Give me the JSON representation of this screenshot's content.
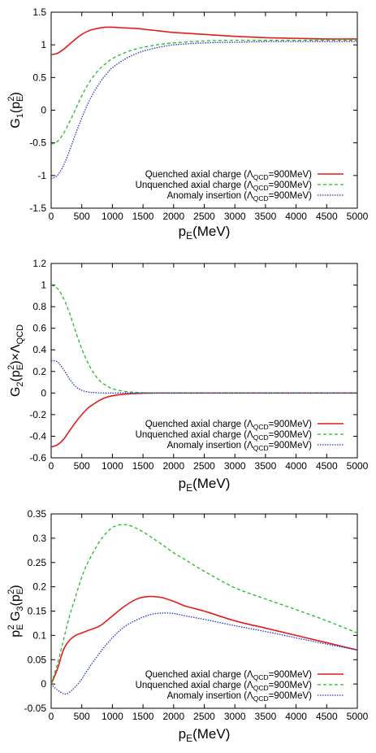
{
  "chart_data": [
    {
      "type": "line",
      "xlabel": "p",
      "xlabel_sub": "E",
      "xlabel_rest": "(MeV)",
      "ylabel_parts": [
        "G",
        "1",
        "(p",
        "E",
        "2",
        ")"
      ],
      "xlim": [
        0,
        5000
      ],
      "ylim": [
        -1.5,
        1.5
      ],
      "xticks": [
        "0",
        "500",
        "1000",
        "1500",
        "2000",
        "2500",
        "3000",
        "3500",
        "4000",
        "4500",
        "5000"
      ],
      "yticks": [
        "-1.5",
        "-1",
        "-0.5",
        "0",
        "0.5",
        "1",
        "1.5"
      ],
      "ytick_values": [
        -1.5,
        -1,
        -0.5,
        0,
        0.5,
        1,
        1.5
      ],
      "legend_position": "bottom-right",
      "series": [
        {
          "name": "Quenched axial charge (Λ",
          "name_sub": "QCD",
          "name_rest": "=900MeV)",
          "color": "#e41a1c",
          "dash": "solid",
          "x": [
            0,
            100,
            200,
            300,
            400,
            500,
            600,
            700,
            800,
            900,
            1000,
            1200,
            1400,
            1600,
            1800,
            2000,
            2500,
            3000,
            3500,
            4000,
            4500,
            5000
          ],
          "y": [
            0.85,
            0.87,
            0.93,
            1.01,
            1.09,
            1.16,
            1.21,
            1.24,
            1.26,
            1.27,
            1.27,
            1.26,
            1.25,
            1.23,
            1.21,
            1.19,
            1.16,
            1.13,
            1.11,
            1.1,
            1.09,
            1.09
          ]
        },
        {
          "name": "Unquenched axial charge (Λ",
          "name_sub": "QCD",
          "name_rest": "=900MeV)",
          "color": "#22bb22",
          "dash": "4,3",
          "x": [
            0,
            100,
            200,
            300,
            400,
            500,
            600,
            700,
            800,
            900,
            1000,
            1200,
            1400,
            1600,
            1800,
            2000,
            2500,
            3000,
            3500,
            4000,
            4500,
            5000
          ],
          "y": [
            -0.52,
            -0.48,
            -0.36,
            -0.18,
            0.02,
            0.22,
            0.39,
            0.53,
            0.64,
            0.72,
            0.79,
            0.88,
            0.94,
            0.98,
            1.01,
            1.03,
            1.06,
            1.07,
            1.07,
            1.07,
            1.07,
            1.07
          ]
        },
        {
          "name": "Anomaly insertion (Λ",
          "name_sub": "QCD",
          "name_rest": "=900MeV)",
          "color": "#2233cc",
          "dash": "1.5,1.5",
          "x": [
            0,
            100,
            200,
            300,
            400,
            500,
            600,
            700,
            800,
            900,
            1000,
            1200,
            1400,
            1600,
            1800,
            2000,
            2500,
            3000,
            3500,
            4000,
            4500,
            5000
          ],
          "y": [
            -1.05,
            -1.0,
            -0.85,
            -0.62,
            -0.36,
            -0.12,
            0.1,
            0.28,
            0.43,
            0.55,
            0.65,
            0.78,
            0.87,
            0.93,
            0.97,
            1.0,
            1.03,
            1.04,
            1.05,
            1.05,
            1.05,
            1.05
          ]
        }
      ]
    },
    {
      "type": "line",
      "xlabel": "p",
      "xlabel_sub": "E",
      "xlabel_rest": "(MeV)",
      "ylabel_parts": [
        "G",
        "2",
        "(p",
        "E",
        "2",
        ")×Λ",
        "QCD",
        ""
      ],
      "xlim": [
        0,
        5000
      ],
      "ylim": [
        -0.6,
        1.2
      ],
      "xticks": [
        "0",
        "500",
        "1000",
        "1500",
        "2000",
        "2500",
        "3000",
        "3500",
        "4000",
        "4500",
        "5000"
      ],
      "yticks": [
        "-0.6",
        "-0.4",
        "-0.2",
        "0",
        "0.2",
        "0.4",
        "0.6",
        "0.8",
        "1",
        "1.2"
      ],
      "ytick_values": [
        -0.6,
        -0.4,
        -0.2,
        0,
        0.2,
        0.4,
        0.6,
        0.8,
        1,
        1.2
      ],
      "legend_position": "bottom-right",
      "series": [
        {
          "name": "Quenched axial charge (Λ",
          "name_sub": "QCD",
          "name_rest": "=900MeV)",
          "color": "#e41a1c",
          "dash": "solid",
          "x": [
            0,
            100,
            200,
            300,
            400,
            500,
            600,
            700,
            800,
            900,
            1000,
            1200,
            1400,
            1600,
            1800,
            2000,
            2500,
            3000,
            3500,
            4000,
            4500,
            5000
          ],
          "y": [
            -0.5,
            -0.48,
            -0.43,
            -0.35,
            -0.27,
            -0.2,
            -0.14,
            -0.1,
            -0.065,
            -0.04,
            -0.025,
            -0.01,
            -0.004,
            -0.001,
            0,
            0,
            0,
            0,
            0,
            0,
            0,
            0
          ]
        },
        {
          "name": "Unquenched axial charge (Λ",
          "name_sub": "QCD",
          "name_rest": "=900MeV)",
          "color": "#22bb22",
          "dash": "4,3",
          "x": [
            0,
            100,
            200,
            300,
            400,
            500,
            600,
            700,
            800,
            900,
            1000,
            1200,
            1400,
            1600,
            1800,
            2000,
            2500,
            3000,
            3500,
            4000,
            4500,
            5000
          ],
          "y": [
            1.0,
            0.97,
            0.88,
            0.74,
            0.57,
            0.41,
            0.28,
            0.18,
            0.11,
            0.07,
            0.04,
            0.015,
            0.005,
            0.002,
            0,
            0,
            0,
            0,
            0,
            0,
            0,
            0
          ]
        },
        {
          "name": "Anomaly insertion (Λ",
          "name_sub": "QCD",
          "name_rest": "=900MeV)",
          "color": "#2233cc",
          "dash": "1.5,1.5",
          "x": [
            0,
            100,
            200,
            300,
            400,
            500,
            600,
            700,
            800,
            900,
            1000,
            1200,
            1400,
            1600,
            1800,
            2000,
            2500,
            3000,
            3500,
            4000,
            4500,
            5000
          ],
          "y": [
            0.3,
            0.29,
            0.22,
            0.13,
            0.06,
            0.025,
            0.01,
            0.004,
            0.001,
            0,
            0,
            0,
            0,
            0,
            0,
            0,
            0,
            0,
            0,
            0,
            0,
            0
          ]
        }
      ]
    },
    {
      "type": "line",
      "xlabel": "p",
      "xlabel_sub": "E",
      "xlabel_rest": "(MeV)",
      "ylabel_parts": [
        "p",
        "E",
        "2",
        " G",
        "3",
        "(p",
        "E",
        "2",
        ")"
      ],
      "xlim": [
        0,
        5000
      ],
      "ylim": [
        -0.05,
        0.35
      ],
      "xticks": [
        "0",
        "500",
        "1000",
        "1500",
        "2000",
        "2500",
        "3000",
        "3500",
        "4000",
        "4500",
        "5000"
      ],
      "yticks": [
        "-0.05",
        "0",
        "0.05",
        "0.1",
        "0.15",
        "0.2",
        "0.25",
        "0.3",
        "0.35"
      ],
      "ytick_values": [
        -0.05,
        0,
        0.05,
        0.1,
        0.15,
        0.2,
        0.25,
        0.3,
        0.35
      ],
      "legend_position": "bottom-right",
      "series": [
        {
          "name": "Quenched axial charge (Λ",
          "name_sub": "QCD",
          "name_rest": "=900MeV)",
          "color": "#e41a1c",
          "dash": "solid",
          "x": [
            0,
            100,
            200,
            300,
            400,
            500,
            600,
            800,
            1000,
            1200,
            1400,
            1600,
            1800,
            2000,
            2200,
            2500,
            3000,
            3500,
            4000,
            4500,
            5000
          ],
          "y": [
            0,
            0.03,
            0.07,
            0.09,
            0.1,
            0.105,
            0.11,
            0.12,
            0.14,
            0.16,
            0.175,
            0.18,
            0.178,
            0.17,
            0.16,
            0.15,
            0.13,
            0.115,
            0.1,
            0.085,
            0.07
          ]
        },
        {
          "name": "Unquenched axial charge (Λ",
          "name_sub": "QCD",
          "name_rest": "=900MeV)",
          "color": "#22bb22",
          "dash": "4,3",
          "x": [
            0,
            100,
            200,
            300,
            400,
            500,
            600,
            800,
            1000,
            1200,
            1400,
            1600,
            1800,
            2000,
            2200,
            2500,
            3000,
            3500,
            4000,
            4500,
            5000
          ],
          "y": [
            0,
            0.04,
            0.09,
            0.14,
            0.18,
            0.22,
            0.25,
            0.295,
            0.322,
            0.328,
            0.32,
            0.305,
            0.288,
            0.27,
            0.255,
            0.232,
            0.198,
            0.175,
            0.153,
            0.13,
            0.105
          ]
        },
        {
          "name": "Anomaly insertion (Λ",
          "name_sub": "QCD",
          "name_rest": "=900MeV)",
          "color": "#2233cc",
          "dash": "1.5,1.5",
          "x": [
            0,
            100,
            200,
            250,
            300,
            400,
            500,
            600,
            800,
            1000,
            1200,
            1400,
            1600,
            1800,
            2000,
            2200,
            2500,
            3000,
            3500,
            4000,
            4500,
            5000
          ],
          "y": [
            0,
            -0.012,
            -0.02,
            -0.02,
            -0.017,
            -0.005,
            0.01,
            0.03,
            0.065,
            0.095,
            0.118,
            0.132,
            0.142,
            0.146,
            0.145,
            0.14,
            0.133,
            0.12,
            0.108,
            0.095,
            0.082,
            0.07
          ]
        }
      ]
    }
  ]
}
